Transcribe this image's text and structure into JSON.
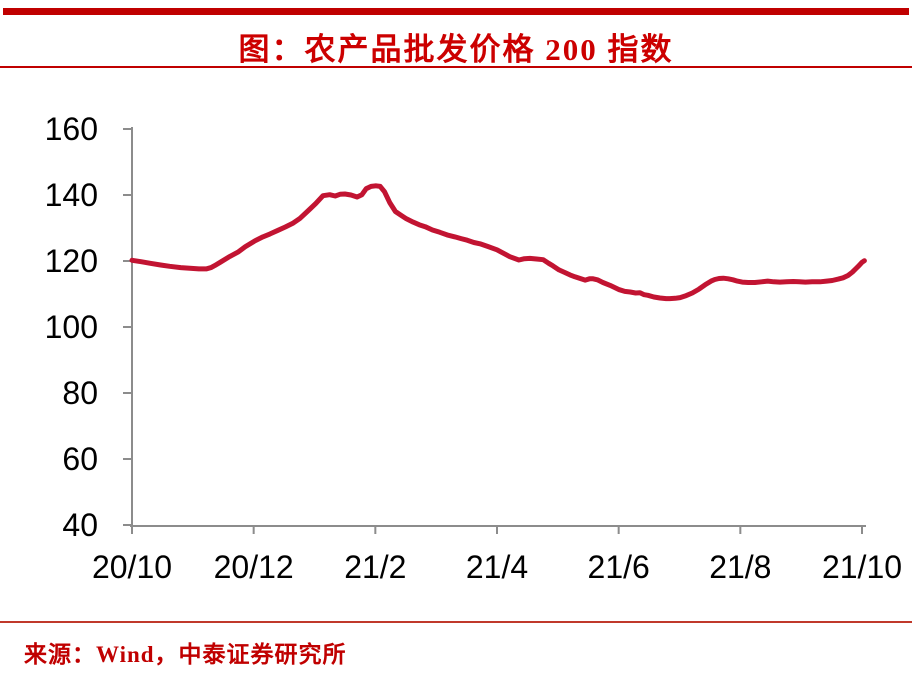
{
  "header": {
    "title": "图：农产品批发价格 200 指数"
  },
  "footer": {
    "source": "来源：Wind，中泰证券研究所"
  },
  "colors": {
    "accent_red": "#C00000",
    "title_red": "#CC0000",
    "line_red": "#C21432",
    "axis_gray": "#8C8C8C",
    "tick_text": "#000000"
  },
  "chart_data": {
    "type": "line",
    "title": "图：农产品批发价格 200 指数",
    "xlabel": "",
    "ylabel": "",
    "ylim": [
      40,
      160
    ],
    "y_ticks": [
      40,
      60,
      80,
      100,
      120,
      140,
      160
    ],
    "x_range": [
      0,
      12
    ],
    "x_ticks": [
      {
        "m": 0,
        "label": "20/10"
      },
      {
        "m": 2,
        "label": "20/12"
      },
      {
        "m": 4,
        "label": "21/2"
      },
      {
        "m": 6,
        "label": "21/4"
      },
      {
        "m": 8,
        "label": "21/6"
      },
      {
        "m": 10,
        "label": "21/8"
      },
      {
        "m": 12,
        "label": "21/10"
      }
    ],
    "grid": false,
    "legend_position": "none",
    "series": [
      {
        "name": "农产品批发价格200指数",
        "x_unit": "months_since_2020_10",
        "points": [
          [
            0,
            120.2
          ],
          [
            0.15,
            119.8
          ],
          [
            0.3,
            119.3
          ],
          [
            0.47,
            118.8
          ],
          [
            0.62,
            118.4
          ],
          [
            0.8,
            118
          ],
          [
            0.95,
            117.8
          ],
          [
            1.1,
            117.6
          ],
          [
            1.22,
            117.6
          ],
          [
            1.3,
            118
          ],
          [
            1.36,
            118.6
          ],
          [
            1.45,
            119.6
          ],
          [
            1.61,
            121.4
          ],
          [
            1.75,
            122.8
          ],
          [
            1.86,
            124.3
          ],
          [
            2.01,
            126
          ],
          [
            2.15,
            127.3
          ],
          [
            2.27,
            128.2
          ],
          [
            2.4,
            129.3
          ],
          [
            2.52,
            130.3
          ],
          [
            2.64,
            131.4
          ],
          [
            2.76,
            132.9
          ],
          [
            2.9,
            135.3
          ],
          [
            3.02,
            137.4
          ],
          [
            3.14,
            139.8
          ],
          [
            3.25,
            140.1
          ],
          [
            3.34,
            139.7
          ],
          [
            3.42,
            140.2
          ],
          [
            3.5,
            140.3
          ],
          [
            3.6,
            140
          ],
          [
            3.7,
            139.4
          ],
          [
            3.78,
            140.1
          ],
          [
            3.85,
            141.9
          ],
          [
            3.93,
            142.6
          ],
          [
            4.01,
            142.8
          ],
          [
            4.08,
            142.6
          ],
          [
            4.15,
            141
          ],
          [
            4.24,
            137.6
          ],
          [
            4.33,
            135
          ],
          [
            4.41,
            134
          ],
          [
            4.51,
            132.8
          ],
          [
            4.62,
            131.8
          ],
          [
            4.72,
            131
          ],
          [
            4.82,
            130.4
          ],
          [
            4.94,
            129.4
          ],
          [
            5.06,
            128.7
          ],
          [
            5.18,
            127.9
          ],
          [
            5.31,
            127.3
          ],
          [
            5.41,
            126.8
          ],
          [
            5.51,
            126.3
          ],
          [
            5.62,
            125.6
          ],
          [
            5.72,
            125.2
          ],
          [
            5.85,
            124.4
          ],
          [
            6,
            123.4
          ],
          [
            6.1,
            122.4
          ],
          [
            6.21,
            121.3
          ],
          [
            6.36,
            120.3
          ],
          [
            6.45,
            120.7
          ],
          [
            6.54,
            120.8
          ],
          [
            6.65,
            120.6
          ],
          [
            6.76,
            120.4
          ],
          [
            6.85,
            119.3
          ],
          [
            6.92,
            118.5
          ],
          [
            7.02,
            117.3
          ],
          [
            7.12,
            116.5
          ],
          [
            7.2,
            115.8
          ],
          [
            7.28,
            115.2
          ],
          [
            7.38,
            114.6
          ],
          [
            7.45,
            114.2
          ],
          [
            7.52,
            114.6
          ],
          [
            7.58,
            114.6
          ],
          [
            7.65,
            114.3
          ],
          [
            7.74,
            113.5
          ],
          [
            7.86,
            112.6
          ],
          [
            8.01,
            111.3
          ],
          [
            8.1,
            110.8
          ],
          [
            8.19,
            110.6
          ],
          [
            8.28,
            110.3
          ],
          [
            8.35,
            110.4
          ],
          [
            8.42,
            109.8
          ],
          [
            8.48,
            109.6
          ],
          [
            8.58,
            109.1
          ],
          [
            8.68,
            108.8
          ],
          [
            8.78,
            108.6
          ],
          [
            8.84,
            108.6
          ],
          [
            8.93,
            108.7
          ],
          [
            9.01,
            108.9
          ],
          [
            9.11,
            109.5
          ],
          [
            9.21,
            110.3
          ],
          [
            9.32,
            111.5
          ],
          [
            9.42,
            112.8
          ],
          [
            9.52,
            113.9
          ],
          [
            9.58,
            114.4
          ],
          [
            9.65,
            114.7
          ],
          [
            9.72,
            114.8
          ],
          [
            9.8,
            114.6
          ],
          [
            9.88,
            114.3
          ],
          [
            9.95,
            113.9
          ],
          [
            10.03,
            113.6
          ],
          [
            10.13,
            113.5
          ],
          [
            10.24,
            113.5
          ],
          [
            10.35,
            113.7
          ],
          [
            10.45,
            113.9
          ],
          [
            10.55,
            113.7
          ],
          [
            10.65,
            113.6
          ],
          [
            10.76,
            113.7
          ],
          [
            10.87,
            113.8
          ],
          [
            10.97,
            113.7
          ],
          [
            11.07,
            113.6
          ],
          [
            11.18,
            113.7
          ],
          [
            11.31,
            113.7
          ],
          [
            11.42,
            113.9
          ],
          [
            11.51,
            114.1
          ],
          [
            11.61,
            114.5
          ],
          [
            11.69,
            114.9
          ],
          [
            11.77,
            115.6
          ],
          [
            11.84,
            116.6
          ],
          [
            11.9,
            117.7
          ],
          [
            11.95,
            118.6
          ],
          [
            12,
            119.6
          ],
          [
            12.04,
            120.1
          ]
        ]
      }
    ]
  }
}
